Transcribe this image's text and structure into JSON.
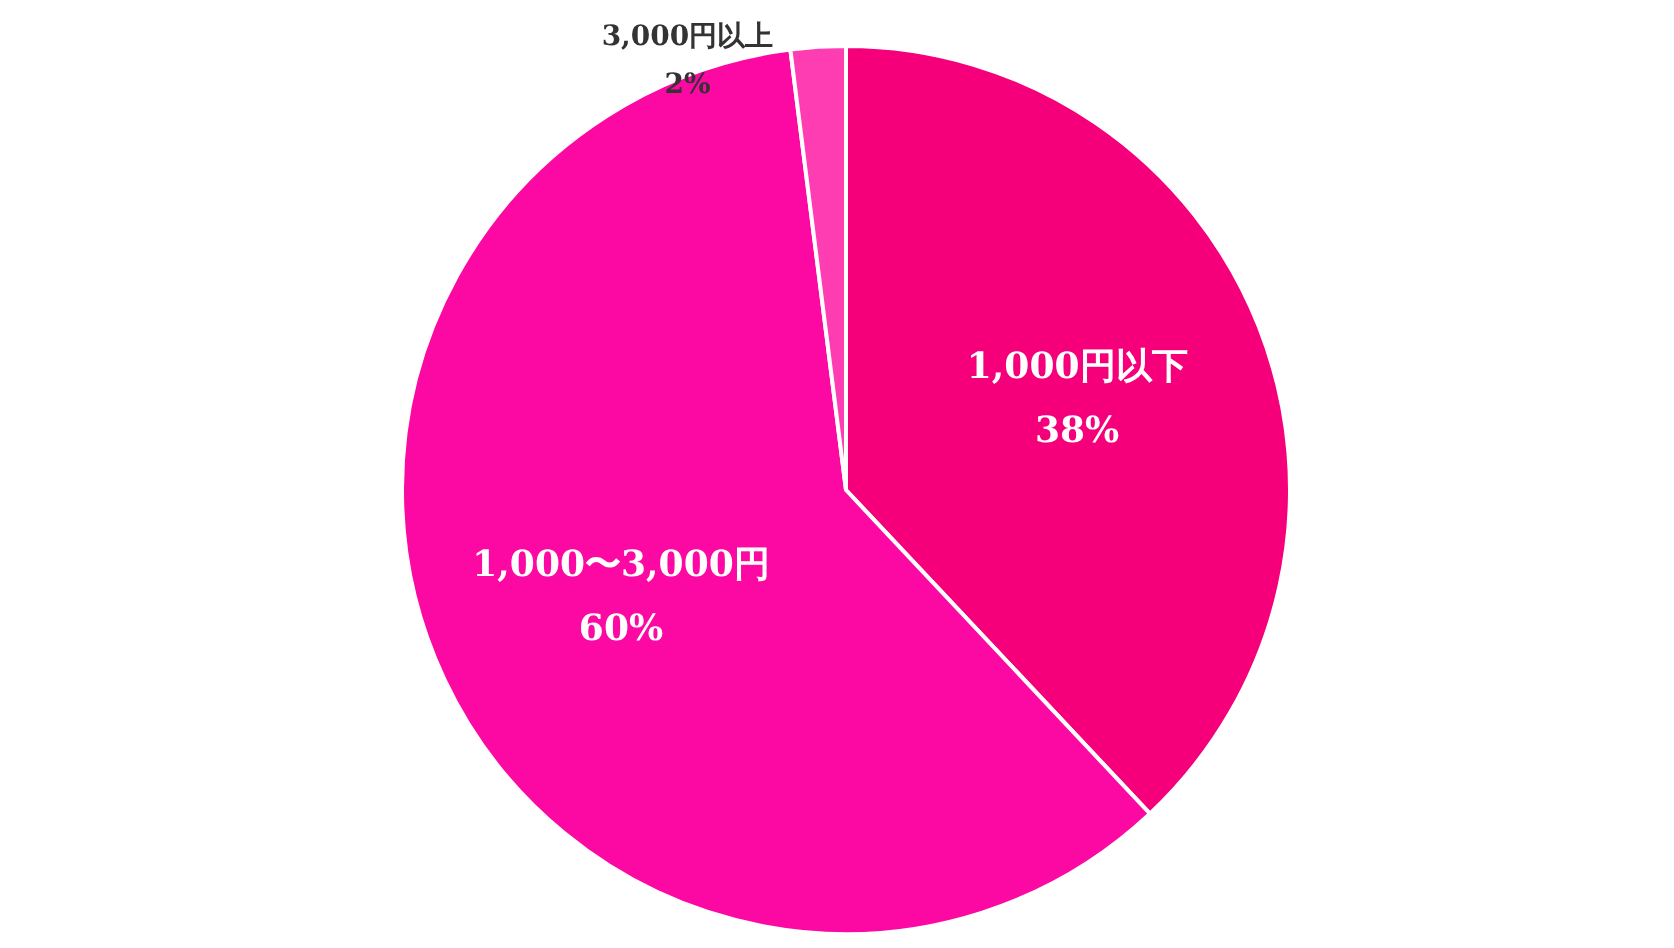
{
  "chart_data": {
    "type": "pie",
    "categories": [
      "1,000円以下",
      "1,000〜3,000円",
      "3,000円以上"
    ],
    "values": [
      38,
      60,
      2
    ],
    "colors": [
      "#f5007a",
      "#fc08a3",
      "#ff3db3"
    ],
    "value_labels": [
      "38%",
      "60%",
      "2%"
    ]
  }
}
